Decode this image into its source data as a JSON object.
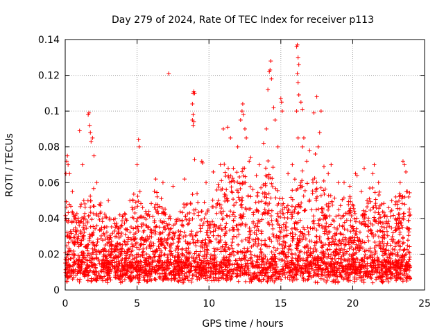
{
  "chart_data": {
    "type": "scatter",
    "title": "Day 279 of 2024, Rate Of TEC Index for receiver p113",
    "xlabel": "GPS time / hours",
    "ylabel": "ROTI / TECUs",
    "xlim": [
      0,
      25
    ],
    "ylim": [
      0,
      0.14
    ],
    "xticks": [
      0,
      5,
      10,
      15,
      20,
      25
    ],
    "xtick_labels": [
      "0",
      "5",
      "10",
      "15",
      "20",
      "25"
    ],
    "yticks": [
      0,
      0.02,
      0.04,
      0.06,
      0.08,
      0.1,
      0.12,
      0.14
    ],
    "ytick_labels": [
      "0",
      "0.02",
      "0.04",
      "0.06",
      "0.08",
      "0.1",
      "0.12",
      "0.14"
    ],
    "grid": true,
    "marker": "+",
    "color": "#ff0000",
    "series": [
      {
        "name": "ROTI",
        "points": [
          [
            0.05,
            0.065
          ],
          [
            0.1,
            0.072
          ],
          [
            0.15,
            0.075
          ],
          [
            0.2,
            0.07
          ],
          [
            1.0,
            0.089
          ],
          [
            1.6,
            0.098
          ],
          [
            1.65,
            0.099
          ],
          [
            1.7,
            0.092
          ],
          [
            1.75,
            0.088
          ],
          [
            1.8,
            0.083
          ],
          [
            1.9,
            0.085
          ],
          [
            2.2,
            0.06
          ],
          [
            5.1,
            0.084
          ],
          [
            5.15,
            0.08
          ],
          [
            5.0,
            0.07
          ],
          [
            5.2,
            0.055
          ],
          [
            7.2,
            0.121
          ],
          [
            8.9,
            0.11
          ],
          [
            8.95,
            0.111
          ],
          [
            9.0,
            0.11
          ],
          [
            8.85,
            0.104
          ],
          [
            8.9,
            0.098
          ],
          [
            8.85,
            0.095
          ],
          [
            8.9,
            0.092
          ],
          [
            8.95,
            0.094
          ],
          [
            9.5,
            0.072
          ],
          [
            9.55,
            0.071
          ],
          [
            9.0,
            0.073
          ],
          [
            11.0,
            0.09
          ],
          [
            11.3,
            0.091
          ],
          [
            11.5,
            0.085
          ],
          [
            12.2,
            0.095
          ],
          [
            12.3,
            0.1
          ],
          [
            12.35,
            0.104
          ],
          [
            12.4,
            0.098
          ],
          [
            12.5,
            0.09
          ],
          [
            12.6,
            0.085
          ],
          [
            12.8,
            0.072
          ],
          [
            13.8,
            0.082
          ],
          [
            14.0,
            0.09
          ],
          [
            14.1,
            0.112
          ],
          [
            14.2,
            0.122
          ],
          [
            14.25,
            0.123
          ],
          [
            14.3,
            0.128
          ],
          [
            14.35,
            0.118
          ],
          [
            14.5,
            0.102
          ],
          [
            14.6,
            0.095
          ],
          [
            15.0,
            0.107
          ],
          [
            15.05,
            0.105
          ],
          [
            15.1,
            0.1
          ],
          [
            14.8,
            0.08
          ],
          [
            16.1,
            0.136
          ],
          [
            16.15,
            0.137
          ],
          [
            16.2,
            0.13
          ],
          [
            16.25,
            0.126
          ],
          [
            16.15,
            0.121
          ],
          [
            16.2,
            0.116
          ],
          [
            16.25,
            0.109
          ],
          [
            16.1,
            0.1
          ],
          [
            16.4,
            0.105
          ],
          [
            16.5,
            0.101
          ],
          [
            16.2,
            0.085
          ],
          [
            16.5,
            0.08
          ],
          [
            16.6,
            0.085
          ],
          [
            17.5,
            0.108
          ],
          [
            17.3,
            0.099
          ],
          [
            17.8,
            0.1
          ],
          [
            17.7,
            0.088
          ],
          [
            17.6,
            0.08
          ],
          [
            17.4,
            0.076
          ],
          [
            18.0,
            0.069
          ],
          [
            18.5,
            0.07
          ],
          [
            19.4,
            0.06
          ],
          [
            20.2,
            0.065
          ],
          [
            20.3,
            0.064
          ],
          [
            20.8,
            0.068
          ],
          [
            21.5,
            0.07
          ],
          [
            21.4,
            0.065
          ],
          [
            21.8,
            0.06
          ],
          [
            23.5,
            0.072
          ],
          [
            23.6,
            0.07
          ],
          [
            23.7,
            0.066
          ],
          [
            23.8,
            0.055
          ],
          [
            0.3,
            0.065
          ],
          [
            0.5,
            0.055
          ],
          [
            1.2,
            0.07
          ],
          [
            2.0,
            0.075
          ],
          [
            3.0,
            0.05
          ],
          [
            3.8,
            0.042
          ],
          [
            4.5,
            0.05
          ],
          [
            6.3,
            0.062
          ],
          [
            6.8,
            0.06
          ],
          [
            7.5,
            0.058
          ],
          [
            8.3,
            0.062
          ],
          [
            9.8,
            0.06
          ],
          [
            10.3,
            0.066
          ],
          [
            10.8,
            0.07
          ],
          [
            11.7,
            0.068
          ],
          [
            12.0,
            0.08
          ],
          [
            12.9,
            0.074
          ],
          [
            13.3,
            0.064
          ],
          [
            13.5,
            0.07
          ],
          [
            15.5,
            0.065
          ],
          [
            15.8,
            0.07
          ],
          [
            16.8,
            0.072
          ],
          [
            17.0,
            0.078
          ],
          [
            18.3,
            0.065
          ],
          [
            19.0,
            0.06
          ],
          [
            19.8,
            0.058
          ],
          [
            20.6,
            0.055
          ],
          [
            21.0,
            0.05
          ],
          [
            22.0,
            0.048
          ],
          [
            22.5,
            0.046
          ],
          [
            23.0,
            0.052
          ],
          [
            23.3,
            0.06
          ]
        ]
      }
    ]
  }
}
